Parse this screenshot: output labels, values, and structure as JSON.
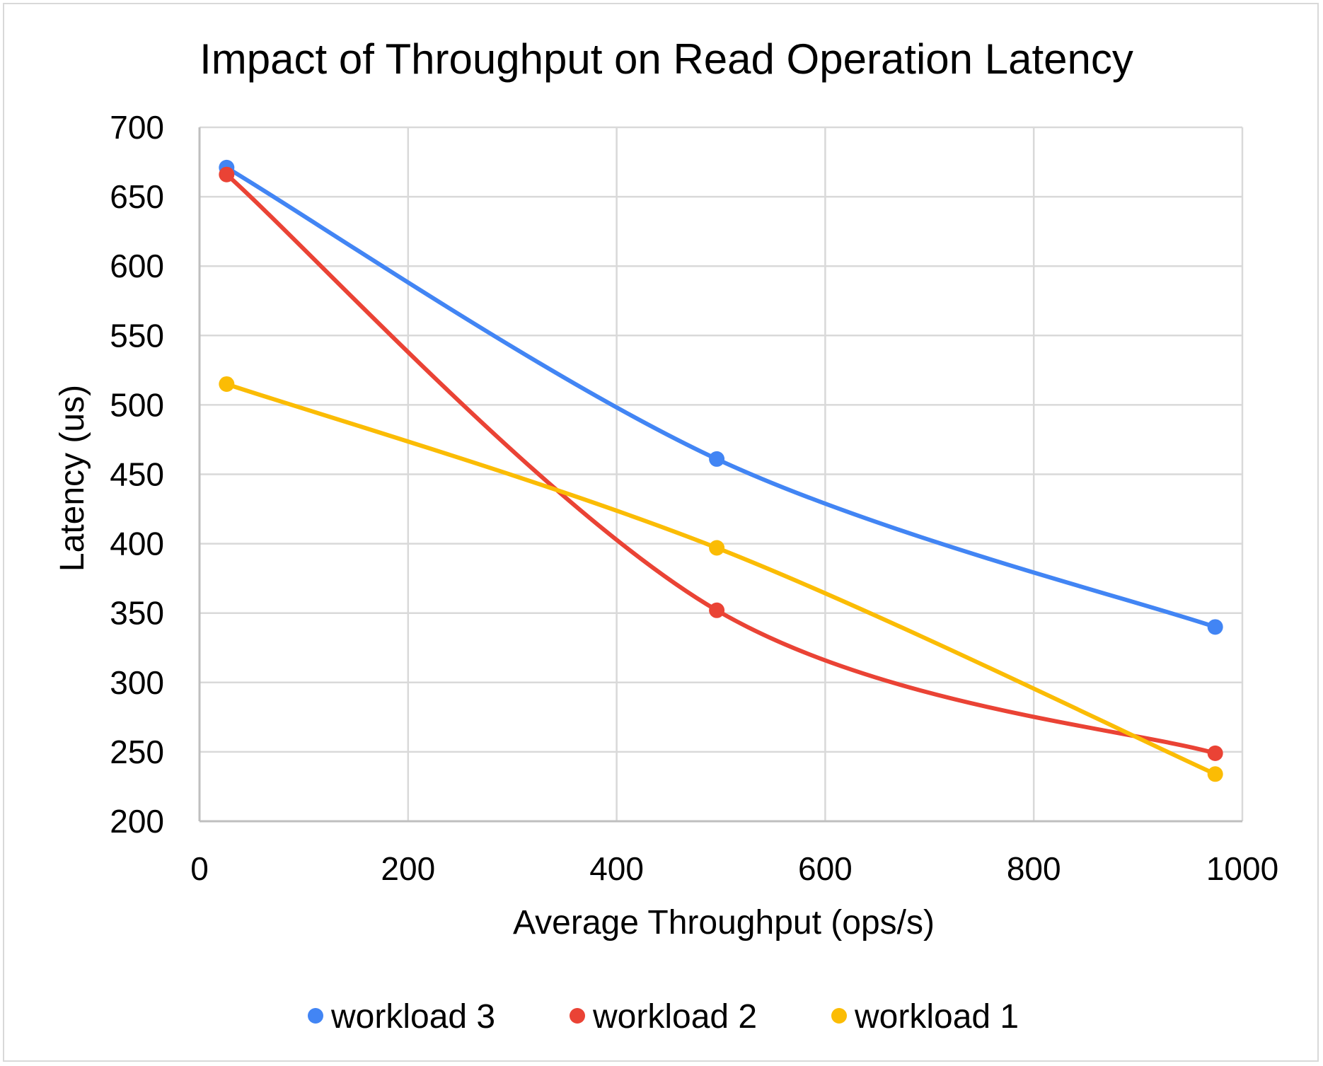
{
  "chart_data": {
    "type": "line",
    "title": "Impact of Throughput on Read Operation Latency",
    "xlabel": "Average Throughput (ops/s)",
    "ylabel": "Latency (us)",
    "xlim": [
      0,
      1000
    ],
    "ylim": [
      200,
      700
    ],
    "xticks": [
      "0",
      "200",
      "400",
      "600",
      "800",
      "1000"
    ],
    "yticks": [
      "200",
      "250",
      "300",
      "350",
      "400",
      "450",
      "500",
      "550",
      "600",
      "650",
      "700"
    ],
    "grid": true,
    "legend_position": "bottom",
    "smoothed": true,
    "series": [
      {
        "name": "workload 3",
        "color": "#4285f4",
        "x": [
          26,
          496,
          974
        ],
        "y": [
          671,
          461,
          340
        ]
      },
      {
        "name": "workload 2",
        "color": "#ea4335",
        "x": [
          26,
          496,
          974
        ],
        "y": [
          666,
          352,
          249
        ]
      },
      {
        "name": "workload 1",
        "color": "#fbbc04",
        "x": [
          26,
          496,
          974
        ],
        "y": [
          515,
          397,
          234
        ]
      }
    ]
  }
}
